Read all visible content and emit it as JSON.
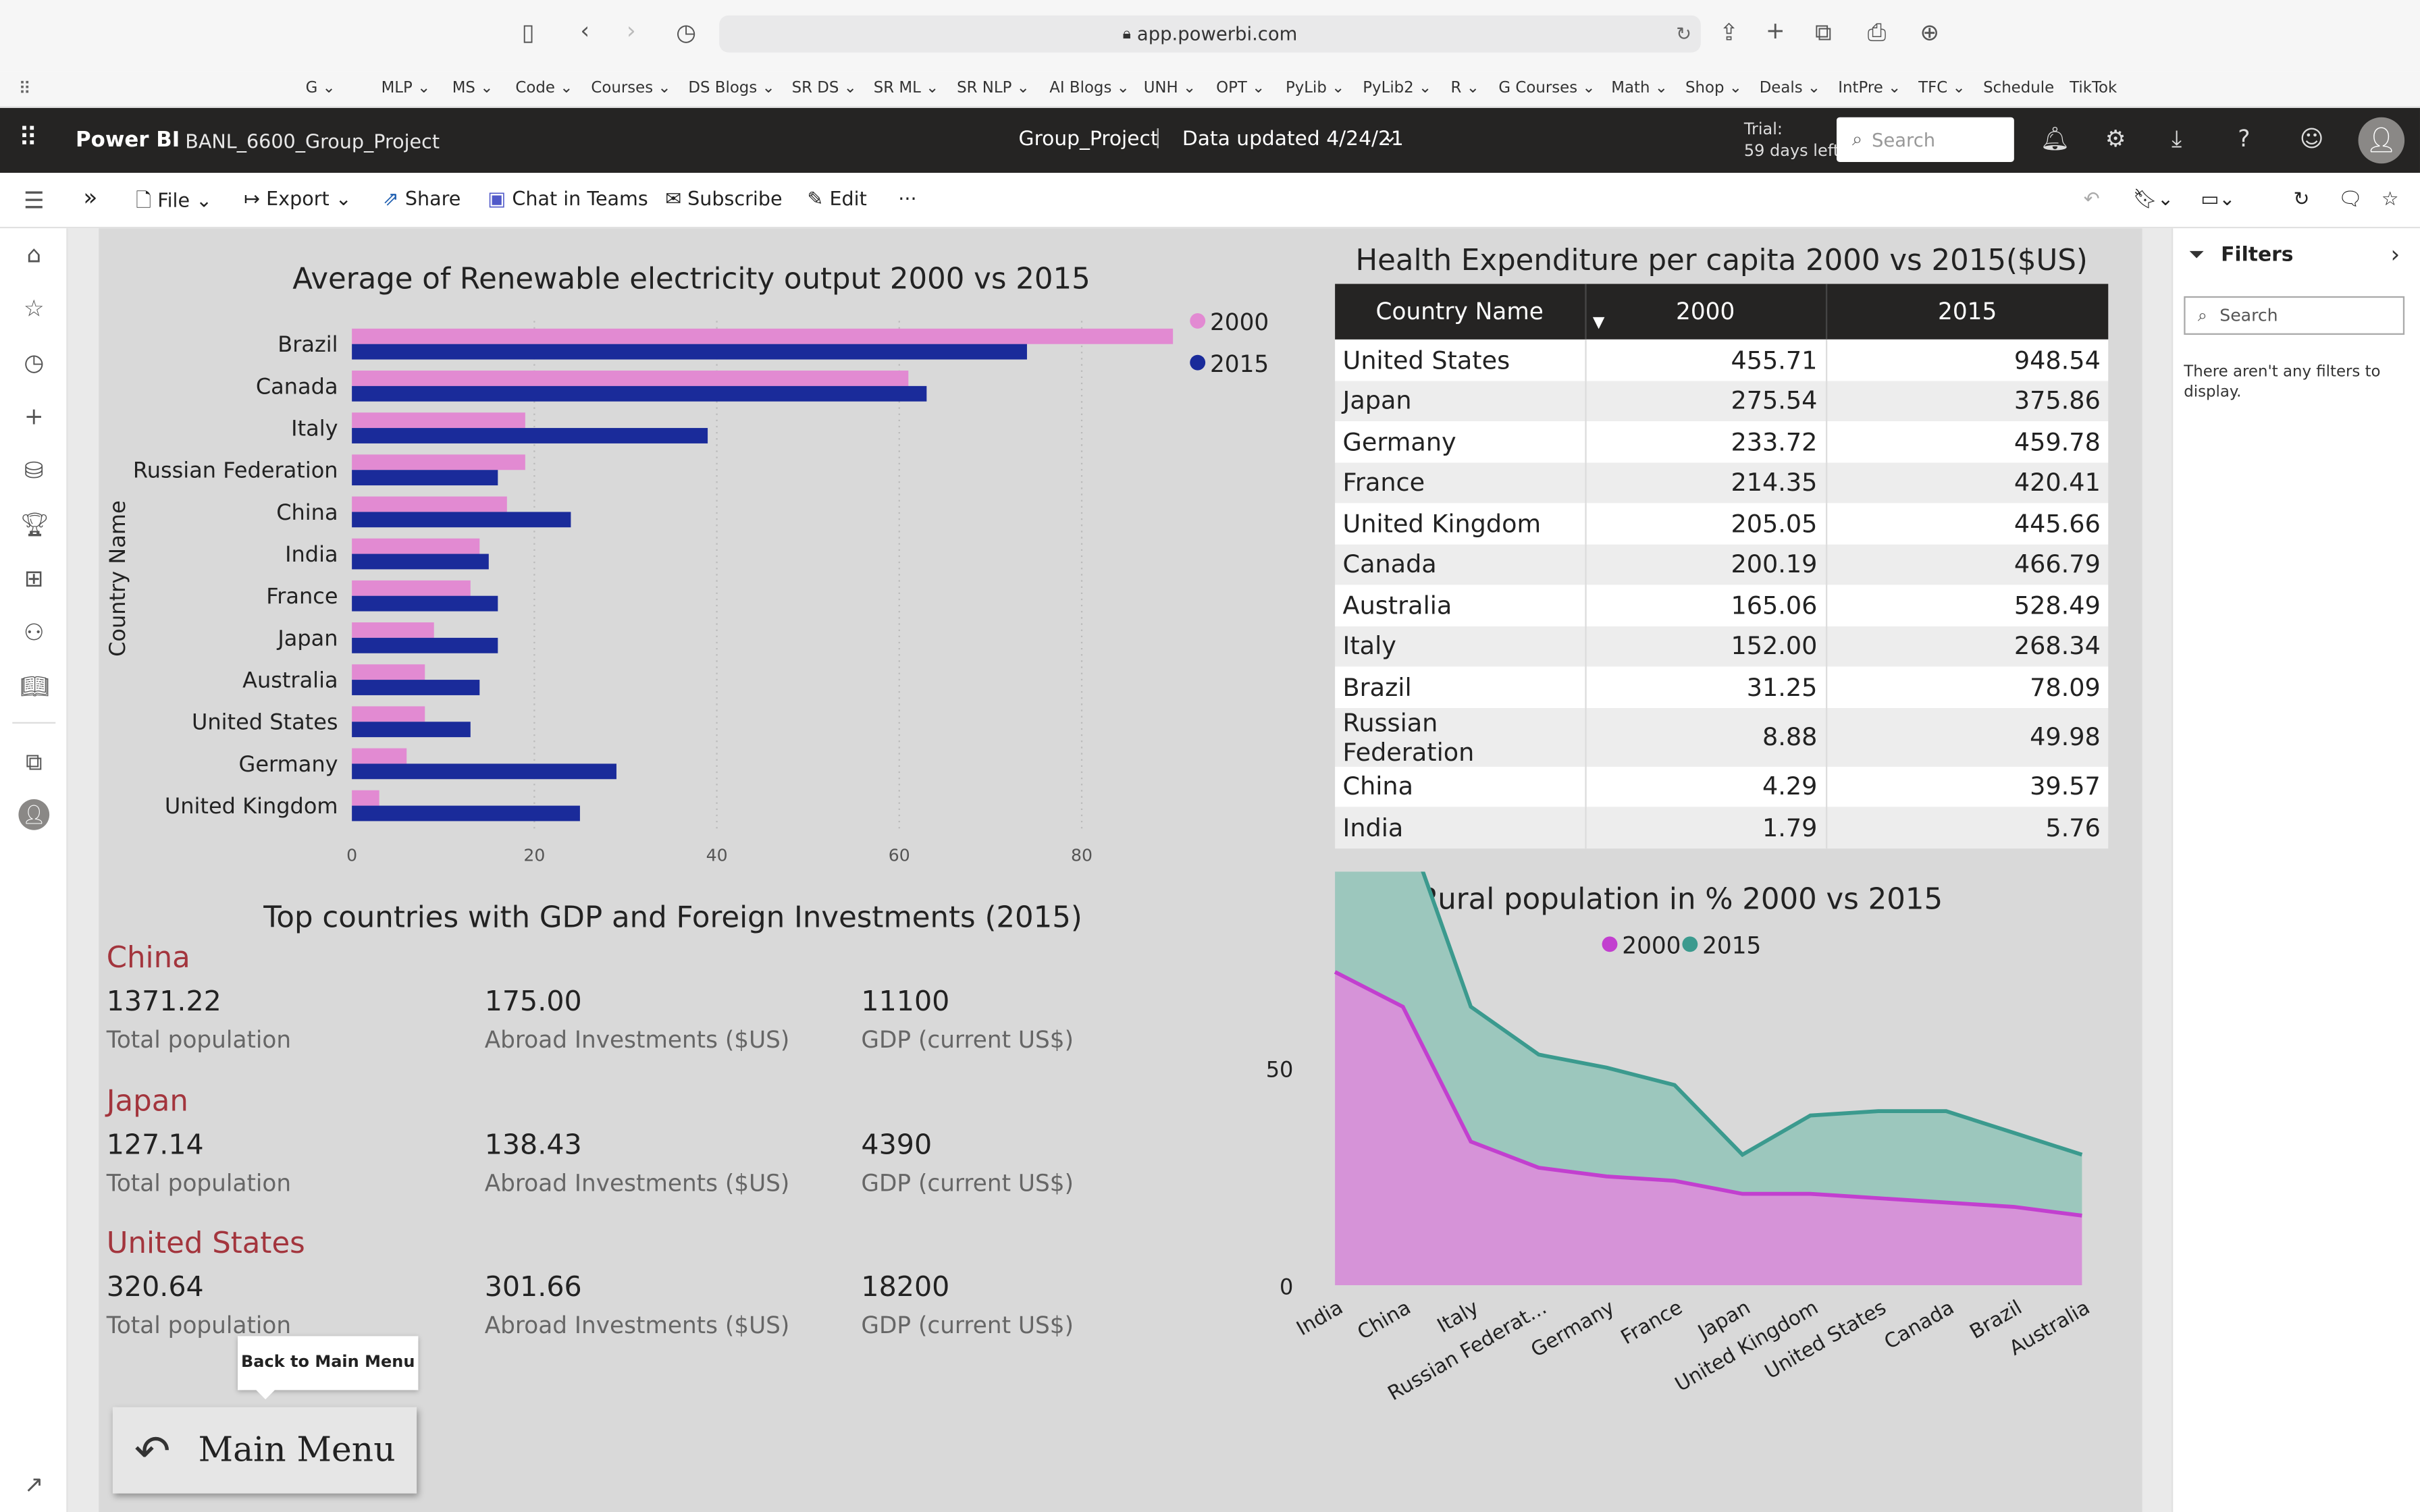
{
  "browser": {
    "url": "app.powerbi.com",
    "favorites": [
      {
        "label": "G ⌄",
        "x": 198
      },
      {
        "label": "MLP ⌄",
        "x": 247
      },
      {
        "label": "MS ⌄",
        "x": 293
      },
      {
        "label": "Code ⌄",
        "x": 334
      },
      {
        "label": "Courses ⌄",
        "x": 383
      },
      {
        "label": "DS Blogs ⌄",
        "x": 446
      },
      {
        "label": "SR DS ⌄",
        "x": 513
      },
      {
        "label": "SR ML ⌄",
        "x": 566
      },
      {
        "label": "SR NLP ⌄",
        "x": 620
      },
      {
        "label": "AI Blogs ⌄",
        "x": 680
      },
      {
        "label": "UNH ⌄",
        "x": 741
      },
      {
        "label": "OPT ⌄",
        "x": 788
      },
      {
        "label": "PyLib ⌄",
        "x": 833
      },
      {
        "label": "PyLib2 ⌄",
        "x": 883
      },
      {
        "label": "R ⌄",
        "x": 940
      },
      {
        "label": "G Courses ⌄",
        "x": 971
      },
      {
        "label": "Math ⌄",
        "x": 1044
      },
      {
        "label": "Shop ⌄",
        "x": 1092
      },
      {
        "label": "Deals ⌄",
        "x": 1140
      },
      {
        "label": "IntPre ⌄",
        "x": 1191
      },
      {
        "label": "TFC ⌄",
        "x": 1243
      },
      {
        "label": "Schedule",
        "x": 1285
      },
      {
        "label": "TikTok",
        "x": 1341
      }
    ]
  },
  "header": {
    "app_name": "Power BI",
    "report_name": "BANL_6600_Group_Project",
    "workspace": "Group_Project",
    "separator": "|",
    "data_updated": "Data updated 4/24/21",
    "trial_line1": "Trial:",
    "trial_line2": "59 days left",
    "search_placeholder": "Search"
  },
  "toolbar": {
    "file": "File",
    "export": "Export",
    "share": "Share",
    "teams": "Chat in Teams",
    "subscribe": "Subscribe",
    "edit": "Edit",
    "more": "···"
  },
  "filters": {
    "title": "Filters",
    "search_placeholder": "Search",
    "empty_text": "There aren't any filters to display."
  },
  "bar_chart": {
    "title": "Average of Renewable electricity output 2000 vs 2015",
    "ylabel": "Country Name",
    "legend": [
      "2000",
      "2015"
    ],
    "colors": {
      "2000": "#e28ad2",
      "2015": "#1a2b9a"
    },
    "xticks": [
      0,
      20,
      40,
      60,
      80
    ],
    "xmax": 90
  },
  "chart_data": [
    {
      "type": "bar",
      "title": "Average of Renewable electricity output 2000 vs 2015",
      "xlabel": "",
      "ylabel": "Country Name",
      "categories": [
        "Brazil",
        "Canada",
        "Italy",
        "Russian Federation",
        "China",
        "India",
        "France",
        "Japan",
        "Australia",
        "United States",
        "Germany",
        "United Kingdom"
      ],
      "series": [
        {
          "name": "2000",
          "values": [
            90,
            61,
            19,
            19,
            17,
            14,
            13,
            9,
            8,
            8,
            6,
            3
          ]
        },
        {
          "name": "2015",
          "values": [
            74,
            63,
            39,
            16,
            24,
            15,
            16,
            16,
            14,
            13,
            29,
            25
          ]
        }
      ],
      "xlim": [
        0,
        90
      ],
      "legend": "top-right"
    },
    {
      "type": "area",
      "title": "Rural population in % 2000 vs 2015",
      "categories": [
        "India",
        "China",
        "Italy",
        "Russian Federat...",
        "Germany",
        "France",
        "Japan",
        "United Kingdom",
        "United States",
        "Canada",
        "Brazil",
        "Australia"
      ],
      "series": [
        {
          "name": "2000",
          "values": [
            72,
            64,
            33,
            27,
            25,
            24,
            21,
            21,
            20,
            19,
            18,
            16
          ]
        },
        {
          "name": "2015",
          "values": [
            67,
            44,
            31,
            26,
            25,
            22,
            9,
            18,
            20,
            21,
            17,
            14
          ]
        }
      ],
      "yticks": [
        0,
        50,
        100
      ],
      "ylim": [
        0,
        140
      ],
      "stacked": true,
      "legend": "top"
    }
  ],
  "area_chart": {
    "title": "Rural population in % 2000 vs 2015",
    "legend": [
      "2000",
      "2015"
    ],
    "colors": {
      "2000": "#c23fcf",
      "2015": "#3b9a8e"
    }
  },
  "table": {
    "title": "Health Expenditure per capita 2000 vs 2015($US)",
    "headers": [
      "Country Name",
      "2000",
      "2015"
    ],
    "rows": [
      [
        "United States",
        "455.71",
        "948.54"
      ],
      [
        "Japan",
        "275.54",
        "375.86"
      ],
      [
        "Germany",
        "233.72",
        "459.78"
      ],
      [
        "France",
        "214.35",
        "420.41"
      ],
      [
        "United Kingdom",
        "205.05",
        "445.66"
      ],
      [
        "Canada",
        "200.19",
        "466.79"
      ],
      [
        "Australia",
        "165.06",
        "528.49"
      ],
      [
        "Italy",
        "152.00",
        "268.34"
      ],
      [
        "Brazil",
        "31.25",
        "78.09"
      ],
      [
        "Russian Federation",
        "8.88",
        "49.98"
      ],
      [
        "China",
        "4.29",
        "39.57"
      ],
      [
        "India",
        "1.79",
        "5.76"
      ]
    ]
  },
  "cards": {
    "title": "Top countries with GDP and Foreign Investments (2015)",
    "labels": {
      "pop": "Total population",
      "inv": "Abroad Investments ($US)",
      "gdp": "GDP (current US$)"
    },
    "countries": [
      {
        "name": "China",
        "pop": "1371.22",
        "inv": "175.00",
        "gdp": "11100"
      },
      {
        "name": "Japan",
        "pop": "127.14",
        "inv": "138.43",
        "gdp": "4390"
      },
      {
        "name": "United States",
        "pop": "320.64",
        "inv": "301.66",
        "gdp": "18200"
      }
    ]
  },
  "nav": {
    "tooltip": "Back to Main Menu",
    "button": "Main Menu"
  }
}
